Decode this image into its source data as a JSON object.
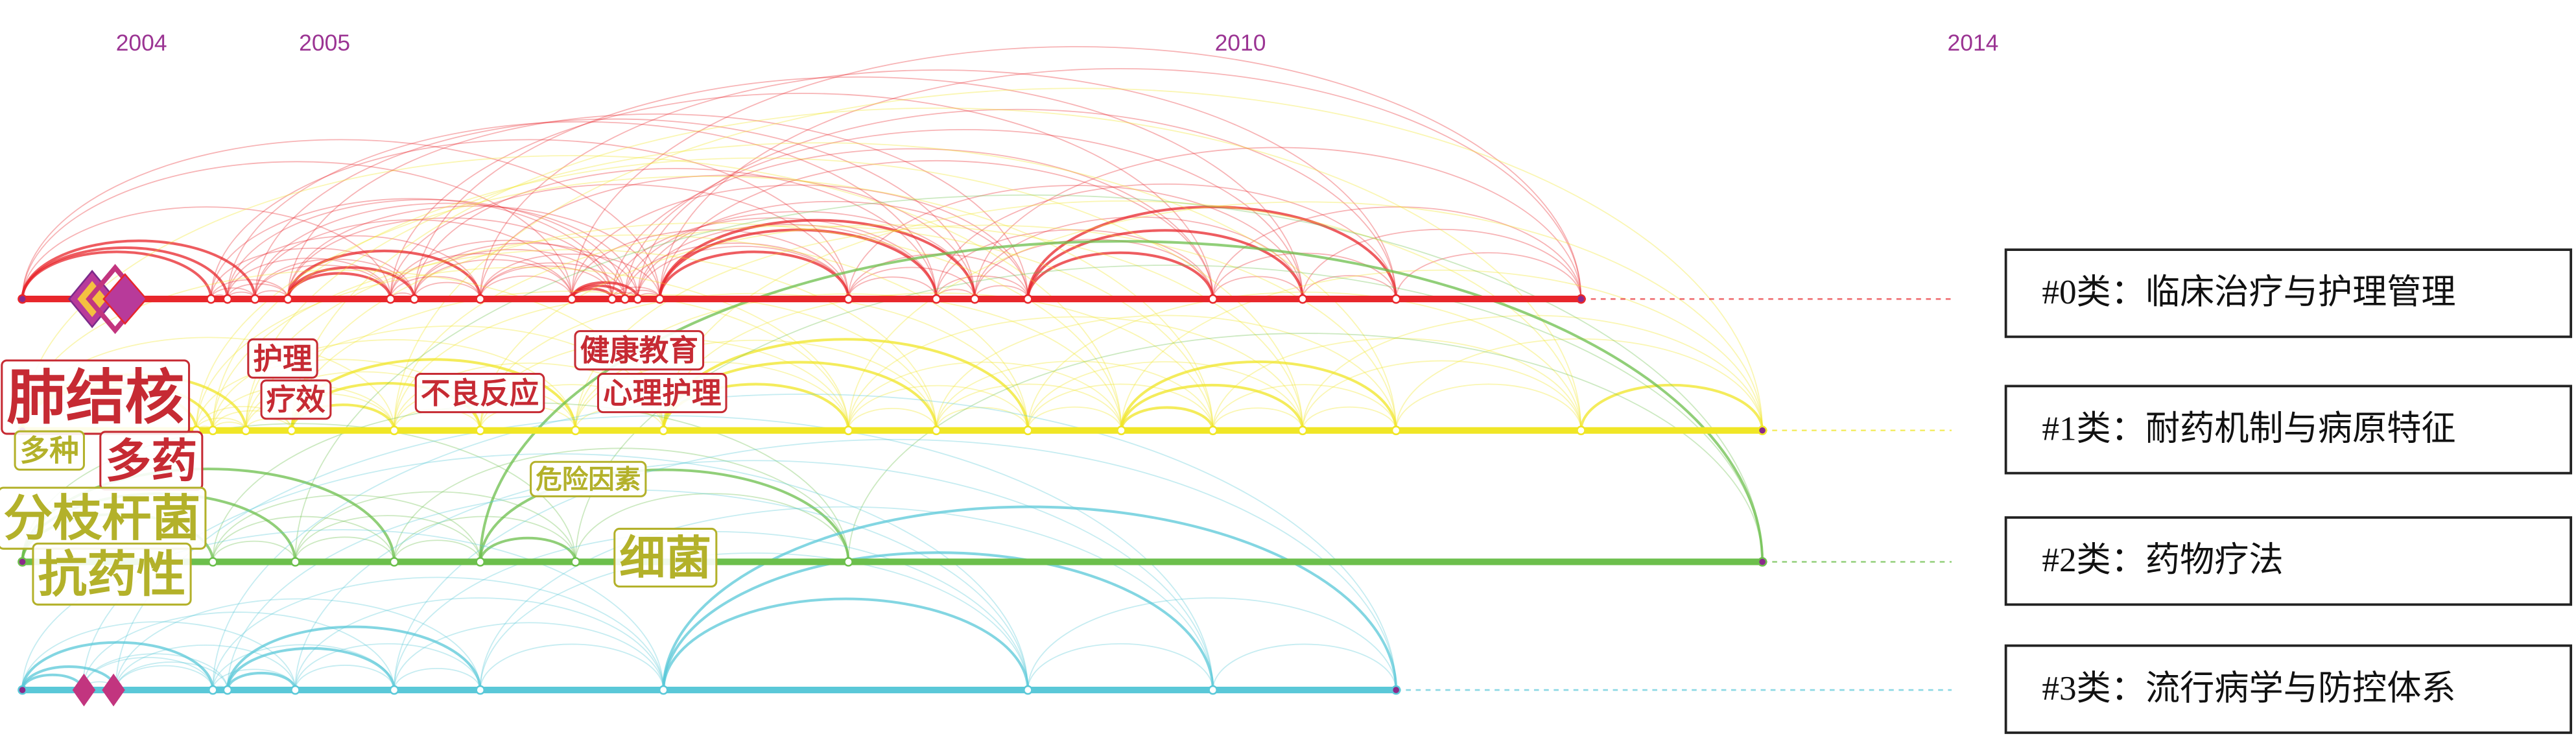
{
  "chart_data": {
    "type": "timeline",
    "xlim": [
      2003.5,
      2014.5
    ],
    "xticks": [
      2004,
      2005,
      2010,
      2014
    ],
    "clusters": [
      {
        "label": "#0类：临床治疗与护理管理",
        "color": "#e8262b",
        "span": [
          2003.35,
          2011.86
        ],
        "nodes": [
          2003.35,
          2004.38,
          2004.47,
          2004.62,
          2004.8,
          2005.36,
          2005.49,
          2005.85,
          2006.35,
          2006.57,
          2006.64,
          2006.71,
          2006.83,
          2007.86,
          2008.34,
          2008.55,
          2008.84,
          2009.85,
          2010.34,
          2010.85,
          2011.86
        ]
      },
      {
        "label": "#1类：耐药机制与病原特征",
        "color": "#f0e626",
        "span": [
          2003.35,
          2012.85
        ],
        "nodes": [
          2003.35,
          2004.3,
          2004.39,
          2004.57,
          2004.82,
          2005.38,
          2005.85,
          2006.37,
          2006.85,
          2007.86,
          2008.34,
          2008.84,
          2009.35,
          2009.85,
          2010.34,
          2010.85,
          2011.86,
          2012.85
        ]
      },
      {
        "label": "#2类：药物疗法",
        "color": "#6cbf4c",
        "span": [
          2003.35,
          2012.85
        ],
        "nodes": [
          2003.35,
          2004.39,
          2004.84,
          2005.38,
          2005.85,
          2006.37,
          2007.86,
          2012.85
        ]
      },
      {
        "label": "#3类：流行病学与防控体系",
        "color": "#5ac8d8",
        "span": [
          2003.35,
          2010.85
        ],
        "nodes": [
          2003.35,
          2003.68,
          2003.86,
          2004.39,
          2004.47,
          2004.84,
          2005.38,
          2005.85,
          2006.85,
          2008.84,
          2009.85,
          2010.85
        ]
      }
    ],
    "keywords": [
      {
        "label": "肺结核",
        "color": "#c62a33"
      },
      {
        "label": "护理",
        "color": "#c62a33"
      },
      {
        "label": "疗效",
        "color": "#c62a33"
      },
      {
        "label": "不良反应",
        "color": "#c62a33"
      },
      {
        "label": "健康教育",
        "color": "#c62a33"
      },
      {
        "label": "心理护理",
        "color": "#c62a33"
      },
      {
        "label": "多种",
        "color": "#b3b12a"
      },
      {
        "label": "多药",
        "color": "#c62a33"
      },
      {
        "label": "危险因素",
        "color": "#b3b12a"
      },
      {
        "label": "分枝杆菌",
        "color": "#b3b12a"
      },
      {
        "label": "抗药性",
        "color": "#b3b12a"
      },
      {
        "label": "细菌",
        "color": "#b3b12a"
      }
    ]
  }
}
